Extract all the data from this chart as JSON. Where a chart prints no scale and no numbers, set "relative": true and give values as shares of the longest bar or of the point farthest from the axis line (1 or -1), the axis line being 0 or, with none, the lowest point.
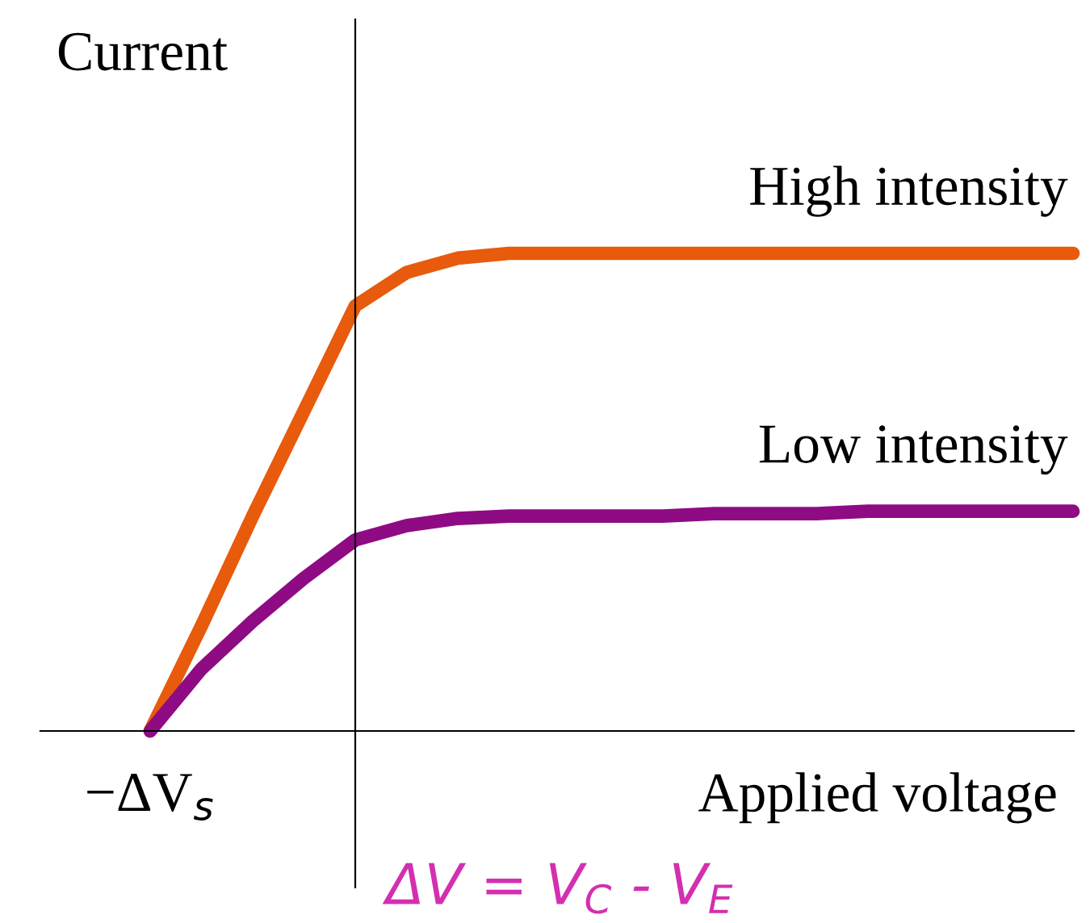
{
  "chart_data": {
    "type": "line",
    "relative": true,
    "xlabel": "Applied voltage",
    "ylabel": "Current",
    "categories": [
      null,
      null,
      null,
      null,
      null,
      null,
      null,
      null,
      null,
      null,
      null,
      null,
      null,
      null,
      null,
      null,
      null,
      null,
      null
    ],
    "series": [
      {
        "name": "High intensity",
        "color": "#e85a0c",
        "values": [
          0,
          0.22,
          0.45,
          0.67,
          0.89,
          0.96,
          0.99,
          1,
          1,
          1,
          1,
          1,
          1,
          1,
          1,
          1,
          1,
          1,
          1
        ]
      },
      {
        "name": "Low intensity",
        "color": "#8e0b84",
        "values": [
          0,
          0.13,
          0.23,
          0.32,
          0.4,
          0.43,
          0.445,
          0.45,
          0.45,
          0.45,
          0.45,
          0.455,
          0.455,
          0.455,
          0.46,
          0.46,
          0.46,
          0.46,
          0.46
        ]
      }
    ],
    "annotations": [
      "−ΔV$_{s}$",
      "ΔV = V$_{C}$ - V$_{E}$"
    ],
    "grid": false,
    "legend": false,
    "marker": "none",
    "line_style": "solid"
  }
}
